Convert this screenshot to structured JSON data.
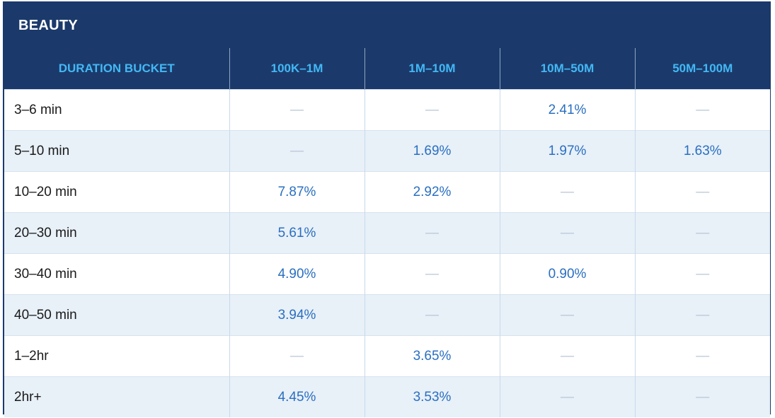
{
  "chart_data": {
    "type": "table",
    "title": "BEAUTY",
    "columns": [
      "DURATION BUCKET",
      "100K–1M",
      "1M–10M",
      "10M–50M",
      "50M–100M"
    ],
    "rows": [
      {
        "label": "3–6 min",
        "values": [
          "—",
          "—",
          "2.41%",
          "—"
        ]
      },
      {
        "label": "5–10 min",
        "values": [
          "—",
          "1.69%",
          "1.97%",
          "1.63%"
        ]
      },
      {
        "label": "10–20 min",
        "values": [
          "7.87%",
          "2.92%",
          "—",
          "—"
        ]
      },
      {
        "label": "20–30 min",
        "values": [
          "5.61%",
          "—",
          "—",
          "—"
        ]
      },
      {
        "label": "30–40 min",
        "values": [
          "4.90%",
          "—",
          "0.90%",
          "—"
        ]
      },
      {
        "label": "40–50 min",
        "values": [
          "3.94%",
          "—",
          "—",
          "—"
        ]
      },
      {
        "label": "1–2hr",
        "values": [
          "—",
          "3.65%",
          "—",
          "—"
        ]
      },
      {
        "label": "2hr+",
        "values": [
          "4.45%",
          "3.53%",
          "—",
          "—"
        ]
      }
    ]
  },
  "colors": {
    "header_bg": "#1b3a6b",
    "header_text": "#42b8f5",
    "value_text": "#2a6fc0",
    "stripe": "#e8f0f8"
  }
}
